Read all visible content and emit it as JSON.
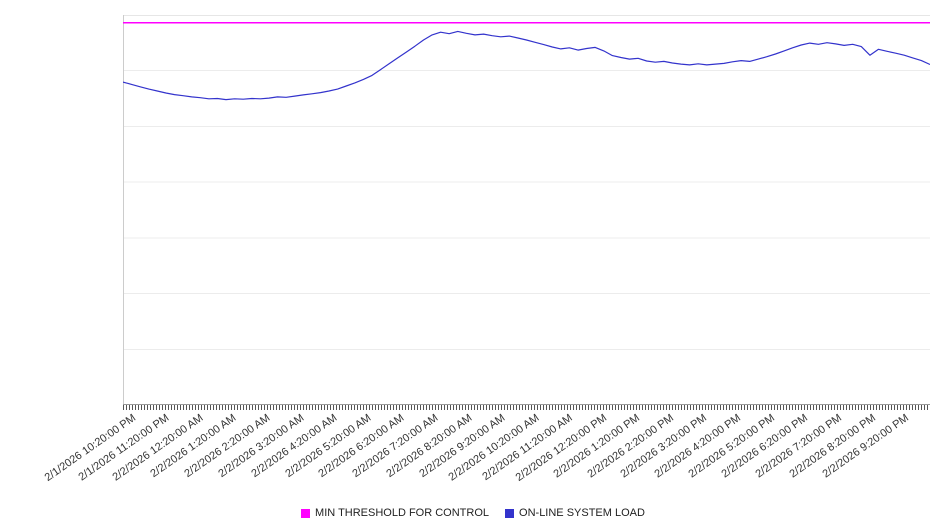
{
  "chart_data": {
    "type": "line",
    "title": "",
    "xlabel": "",
    "ylabel": "",
    "ylim": [
      0,
      100
    ],
    "grid": "horizontal",
    "legend_position": "bottom",
    "y_axis_tick_labels": [],
    "x_tick_labels": [
      "2/1/2026 10:20:00 PM",
      "2/1/2026 11:20:00 PM",
      "2/2/2026 12:20:00 AM",
      "2/2/2026 1:20:00 AM",
      "2/2/2026 2:20:00 AM",
      "2/2/2026 3:20:00 AM",
      "2/2/2026 4:20:00 AM",
      "2/2/2026 5:20:00 AM",
      "2/2/2026 6:20:00 AM",
      "2/2/2026 7:20:00 AM",
      "2/2/2026 8:20:00 AM",
      "2/2/2026 9:20:00 AM",
      "2/2/2026 10:20:00 AM",
      "2/2/2026 11:20:00 AM",
      "2/2/2026 12:20:00 PM",
      "2/2/2026 1:20:00 PM",
      "2/2/2026 2:20:00 PM",
      "2/2/2026 3:20:00 PM",
      "2/2/2026 4:20:00 PM",
      "2/2/2026 5:20:00 PM",
      "2/2/2026 6:20:00 PM",
      "2/2/2026 7:20:00 PM",
      "2/2/2026 8:20:00 PM",
      "2/2/2026 9:20:00 PM"
    ],
    "series": [
      {
        "name": "MIN THRESHOLD FOR CONTROL",
        "type": "threshold",
        "value": 98,
        "color": "#ff00ff"
      },
      {
        "name": "ON-LINE SYSTEM LOAD",
        "type": "line",
        "color": "#3333cc",
        "values": [
          82.8,
          82.2,
          81.6,
          81.0,
          80.5,
          80.0,
          79.6,
          79.3,
          79.0,
          78.8,
          78.5,
          78.6,
          78.3,
          78.5,
          78.4,
          78.6,
          78.5,
          78.7,
          79.0,
          78.9,
          79.2,
          79.5,
          79.8,
          80.1,
          80.5,
          81.0,
          81.8,
          82.6,
          83.5,
          84.5,
          86.0,
          87.5,
          89.0,
          90.5,
          92.0,
          93.6,
          94.9,
          95.6,
          95.2,
          95.8,
          95.3,
          94.9,
          95.1,
          94.7,
          94.4,
          94.6,
          94.1,
          93.6,
          93.0,
          92.4,
          91.8,
          91.3,
          91.6,
          91.0,
          91.4,
          91.7,
          90.8,
          89.6,
          89.1,
          88.7,
          88.9,
          88.2,
          87.9,
          88.1,
          87.7,
          87.4,
          87.2,
          87.5,
          87.2,
          87.4,
          87.6,
          88.0,
          88.3,
          88.1,
          88.7,
          89.3,
          90.0,
          90.8,
          91.6,
          92.3,
          92.8,
          92.5,
          92.9,
          92.6,
          92.2,
          92.5,
          91.9,
          89.7,
          91.2,
          90.7,
          90.2,
          89.7,
          89.0,
          88.3,
          87.3
        ]
      }
    ],
    "axis_colors": {
      "y_axis": "#cccccc",
      "x_axis": "#999999",
      "gridline": "#ececec",
      "plot_top_border": "#e6e6e6"
    }
  },
  "legend": {
    "items": [
      {
        "label": "MIN THRESHOLD FOR CONTROL",
        "color": "#ff00ff"
      },
      {
        "label": "ON-LINE SYSTEM LOAD",
        "color": "#3333cc"
      }
    ]
  }
}
